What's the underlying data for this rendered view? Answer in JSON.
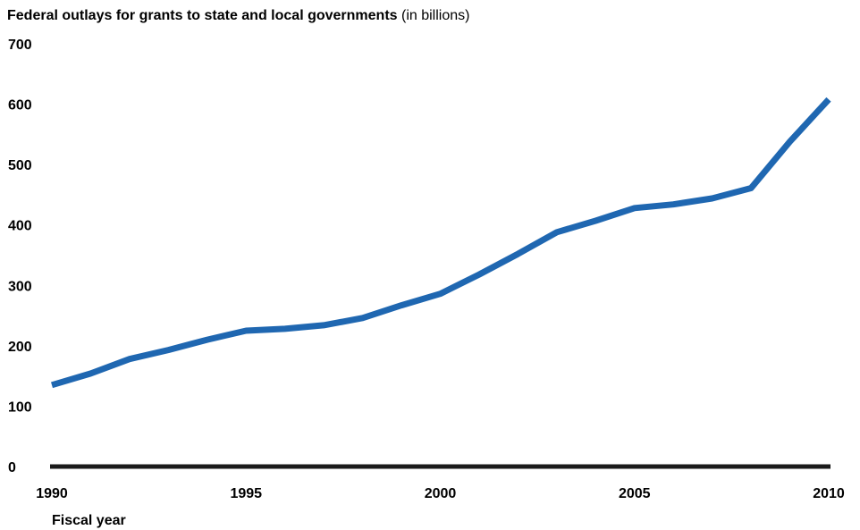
{
  "chart_data": {
    "type": "line",
    "title": "Federal outlays for grants to state and local governments",
    "subtitle": "(in billions)",
    "xlabel": "Fiscal year",
    "ylabel": "",
    "xlim": [
      1990,
      2010
    ],
    "ylim": [
      0,
      700
    ],
    "x_ticks": [
      1990,
      1995,
      2000,
      2005,
      2010
    ],
    "y_ticks": [
      0,
      100,
      200,
      300,
      400,
      500,
      600,
      700
    ],
    "grid": false,
    "legend": "none",
    "line_color": "#1f67b1",
    "axis_color": "#1a1a1a",
    "series": [
      {
        "x": [
          1990,
          1991,
          1992,
          1993,
          1994,
          1995,
          1996,
          1997,
          1998,
          1999,
          2000,
          2001,
          2002,
          2003,
          2004,
          2005,
          2006,
          2007,
          2008,
          2009,
          2010
        ],
        "values": [
          135,
          154,
          178,
          193,
          210,
          225,
          228,
          234,
          246,
          267,
          286,
          318,
          352,
          388,
          407,
          428,
          434,
          444,
          461,
          538,
          608
        ]
      }
    ]
  }
}
